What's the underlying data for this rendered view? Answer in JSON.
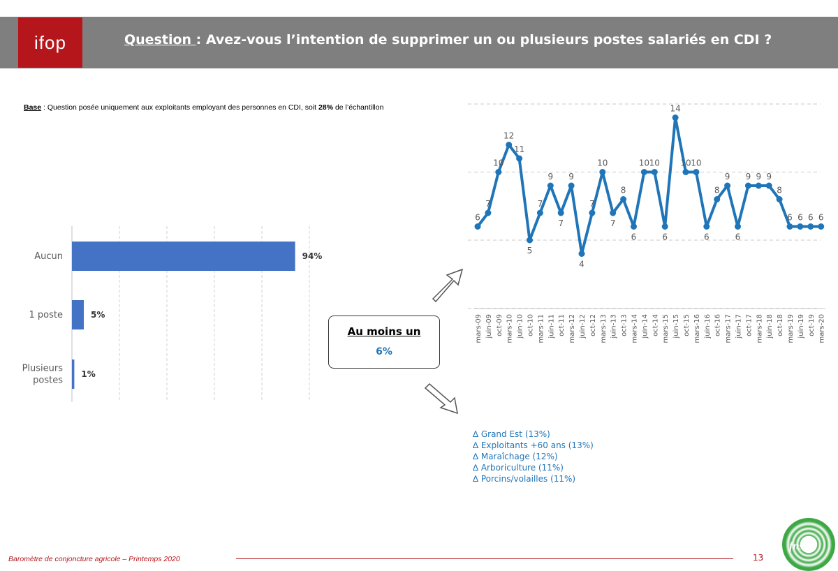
{
  "header": {
    "logo_text": "ifop",
    "title_prefix": "Question ",
    "title_rest": ": Avez-vous l’intention de supprimer un ou plusieurs postes salariés en CDI ?"
  },
  "base": {
    "label": "Base",
    "text_before": " : Question posée uniquement aux exploitants employant des personnes en CDI, soit ",
    "pct": "28%",
    "text_after": " de l’échantillon"
  },
  "chart_data": [
    {
      "type": "bar",
      "orientation": "horizontal",
      "categories": [
        "Aucun",
        "1 poste",
        "Plusieurs postes"
      ],
      "category_lines": [
        [
          "Aucun"
        ],
        [
          "1 poste"
        ],
        [
          "Plusieurs",
          "postes"
        ]
      ],
      "values": [
        94,
        5,
        1
      ],
      "value_labels": [
        "94%",
        "5%",
        "1%"
      ],
      "xlim": [
        0,
        100
      ],
      "color": "#4472c4"
    },
    {
      "type": "line",
      "x": [
        "mars-09",
        "juin-09",
        "oct-09",
        "mars-10",
        "juin-10",
        "oct-10",
        "mars-11",
        "juin-11",
        "oct-11",
        "mars-12",
        "juin-12",
        "oct-12",
        "mars-13",
        "juin-13",
        "oct-13",
        "mars-14",
        "juin-14",
        "oct-14",
        "mars-15",
        "juin-15",
        "oct-15",
        "mars-16",
        "juin-16",
        "oct-16",
        "mars-17",
        "juin-17",
        "oct-17",
        "mars-18",
        "juin-18",
        "oct-18",
        "mars-19",
        "juin-19",
        "oct-19",
        "mars-20"
      ],
      "values": [
        6,
        7,
        10,
        12,
        11,
        5,
        7,
        9,
        7,
        9,
        4,
        7,
        10,
        7,
        8,
        6,
        10,
        10,
        6,
        14,
        10,
        10,
        6,
        8,
        9,
        6,
        9,
        9,
        9,
        8,
        6,
        6,
        6,
        6
      ],
      "color": "#1f75b8",
      "grid": true
    }
  ],
  "summary_box": {
    "label": "Au moins un",
    "value": "6%"
  },
  "highlights": [
    "∆ Grand Est (13%)",
    "∆ Exploitants +60 ans (13%)",
    "∆ Maraîchage (12%)",
    "∆ Arboriculture (11%)",
    "∆ Porcins/volailles (11%)"
  ],
  "footer": {
    "text": "Baromètre de conjoncture agricole – Printemps 2020",
    "page": "13",
    "partner_logo": "fnsea"
  }
}
